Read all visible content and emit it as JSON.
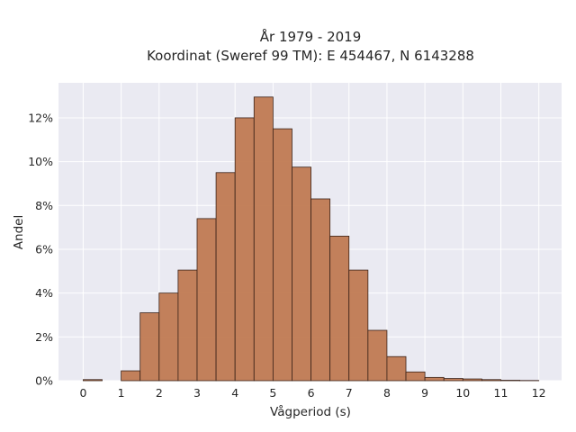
{
  "chart_data": {
    "type": "bar",
    "title_lines": [
      "År 1979 - 2019",
      "Koordinat (Sweref 99 TM): E 454467, N 6143288"
    ],
    "xlabel": "Vågperiod (s)",
    "ylabel": "Andel",
    "bin_width": 0.5,
    "bins": [
      {
        "x_start": 0.0,
        "value": 0.05
      },
      {
        "x_start": 0.5,
        "value": 0.0
      },
      {
        "x_start": 1.0,
        "value": 0.45
      },
      {
        "x_start": 1.5,
        "value": 3.1
      },
      {
        "x_start": 2.0,
        "value": 4.0
      },
      {
        "x_start": 2.5,
        "value": 5.05
      },
      {
        "x_start": 3.0,
        "value": 7.4
      },
      {
        "x_start": 3.5,
        "value": 9.5
      },
      {
        "x_start": 4.0,
        "value": 12.0
      },
      {
        "x_start": 4.5,
        "value": 12.95
      },
      {
        "x_start": 5.0,
        "value": 11.5
      },
      {
        "x_start": 5.5,
        "value": 9.75
      },
      {
        "x_start": 6.0,
        "value": 8.3
      },
      {
        "x_start": 6.5,
        "value": 6.6
      },
      {
        "x_start": 7.0,
        "value": 5.05
      },
      {
        "x_start": 7.5,
        "value": 2.3
      },
      {
        "x_start": 8.0,
        "value": 1.1
      },
      {
        "x_start": 8.5,
        "value": 0.4
      },
      {
        "x_start": 9.0,
        "value": 0.15
      },
      {
        "x_start": 9.5,
        "value": 0.1
      },
      {
        "x_start": 10.0,
        "value": 0.08
      },
      {
        "x_start": 10.5,
        "value": 0.05
      },
      {
        "x_start": 11.0,
        "value": 0.02
      },
      {
        "x_start": 11.5,
        "value": 0.01
      }
    ],
    "xlim": [
      -0.65,
      12.6
    ],
    "ylim": [
      0,
      13.6
    ],
    "xticks": [
      0,
      1,
      2,
      3,
      4,
      5,
      6,
      7,
      8,
      9,
      10,
      11,
      12
    ],
    "xtick_labels": [
      "0",
      "1",
      "2",
      "3",
      "4",
      "5",
      "6",
      "7",
      "8",
      "9",
      "10",
      "11",
      "12"
    ],
    "yticks": [
      0,
      2,
      4,
      6,
      8,
      10,
      12
    ],
    "ytick_labels": [
      "0%",
      "2%",
      "4%",
      "6%",
      "8%",
      "10%",
      "12%"
    ],
    "grid": true,
    "colors": {
      "bar_fill": "#c07a52",
      "bar_edge": "#3a2218",
      "plot_background": "#eaeaf2",
      "grid": "#ffffff"
    }
  }
}
